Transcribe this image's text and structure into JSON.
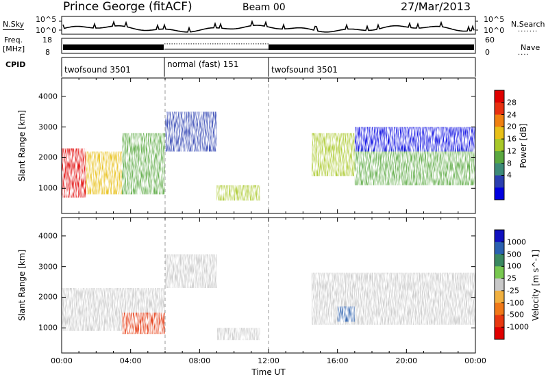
{
  "header": {
    "station": "Prince George (fitACF)",
    "beam": "Beam 00",
    "date": "27/Mar/2013"
  },
  "top_panels": {
    "nsky_label": "N.Sky",
    "nsky_ticks": [
      "10^5",
      "10^0"
    ],
    "nsky_right_ticks": [
      "10^5",
      "10^0"
    ],
    "nsearch_label": "N.Search",
    "freq_label": "Freq.",
    "freq_unit": "[MHz]",
    "freq_ticks": [
      "18",
      "8"
    ],
    "nave_label": "Nave",
    "nave_ticks": [
      "60",
      "0"
    ],
    "cpid_label": "CPID",
    "cpid_segments": [
      {
        "label": "twofsound 3501",
        "start": 0,
        "end": 6
      },
      {
        "label": "normal (fast) 151",
        "start": 6,
        "end": 12
      },
      {
        "label": "twofsound 3501",
        "start": 12,
        "end": 24
      }
    ]
  },
  "chart_data": [
    {
      "type": "heatmap",
      "panel": "power",
      "ylabel": "Slant Range [km]",
      "yticks": [
        "1000",
        "2000",
        "3000",
        "4000"
      ],
      "ylim": [
        180,
        4600
      ],
      "xlim": [
        0,
        24
      ],
      "colorbar_label": "Power [dB]",
      "colorbar_ticks": [
        "28",
        "24",
        "20",
        "16",
        "12",
        "8",
        "4"
      ],
      "colorbar_colors": [
        "#0000e0",
        "#2b3fb0",
        "#3d8a78",
        "#5aa840",
        "#a8c828",
        "#e8c018",
        "#f08010",
        "#e83010",
        "#e00000"
      ],
      "regions": [
        {
          "x": [
            0,
            1.4
          ],
          "y": [
            700,
            2300
          ],
          "level": 0.9
        },
        {
          "x": [
            1.4,
            3.5
          ],
          "y": [
            800,
            2200
          ],
          "level": 0.65
        },
        {
          "x": [
            3.5,
            6
          ],
          "y": [
            800,
            2800
          ],
          "level": 0.4
        },
        {
          "x": [
            6,
            9
          ],
          "y": [
            2200,
            3500
          ],
          "level": 0.2
        },
        {
          "x": [
            9,
            11.5
          ],
          "y": [
            600,
            1100
          ],
          "level": 0.55
        },
        {
          "x": [
            14.5,
            17
          ],
          "y": [
            1400,
            2800
          ],
          "level": 0.5
        },
        {
          "x": [
            17,
            24
          ],
          "y": [
            1100,
            2300
          ],
          "level": 0.35
        },
        {
          "x": [
            17,
            24
          ],
          "y": [
            2200,
            3000
          ],
          "level": 0.1
        }
      ]
    },
    {
      "type": "heatmap",
      "panel": "velocity",
      "ylabel": "Slant Range [km]",
      "yticks": [
        "1000",
        "2000",
        "3000",
        "4000"
      ],
      "ylim": [
        180,
        4600
      ],
      "xlim": [
        0,
        24
      ],
      "xticks": [
        "00:00",
        "04:00",
        "08:00",
        "12:00",
        "16:00",
        "20:00",
        "00:00"
      ],
      "xlabel": "Time UT",
      "colorbar_label": "Velocity [m s^-1]",
      "colorbar_ticks": [
        "1000",
        "500",
        "100",
        "25",
        "-25",
        "-100",
        "-500",
        "-1000"
      ],
      "colorbar_colors": [
        "#1010c0",
        "#2a60b0",
        "#3a8860",
        "#78c850",
        "#c8c8c8",
        "#f0b040",
        "#f07818",
        "#e83810",
        "#e00000"
      ],
      "regions": [
        {
          "x": [
            0,
            6
          ],
          "y": [
            900,
            2300
          ],
          "value": 0
        },
        {
          "x": [
            3.5,
            6
          ],
          "y": [
            800,
            1500
          ],
          "value": -600
        },
        {
          "x": [
            6,
            9
          ],
          "y": [
            2300,
            3400
          ],
          "value": 0
        },
        {
          "x": [
            9,
            11.5
          ],
          "y": [
            600,
            1000
          ],
          "value": 0
        },
        {
          "x": [
            14.5,
            24
          ],
          "y": [
            1100,
            2800
          ],
          "value": 0
        },
        {
          "x": [
            16,
            17
          ],
          "y": [
            1200,
            1700
          ],
          "value": 300
        }
      ]
    }
  ]
}
